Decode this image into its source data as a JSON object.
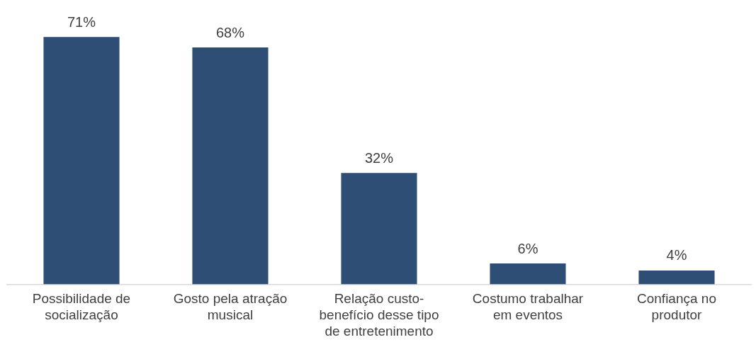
{
  "chart_data": {
    "type": "bar",
    "categories": [
      "Possibilidade de socialização",
      "Gosto pela atração musical",
      "Relação custo-benefício desse tipo de entretenimento",
      "Costumo trabalhar em eventos",
      "Confiança no produtor"
    ],
    "values": [
      71,
      68,
      32,
      6,
      4
    ],
    "value_labels": [
      "71%",
      "68%",
      "32%",
      "6%",
      "4%"
    ],
    "color": "#2e4e75",
    "grid": false,
    "legend": false
  }
}
